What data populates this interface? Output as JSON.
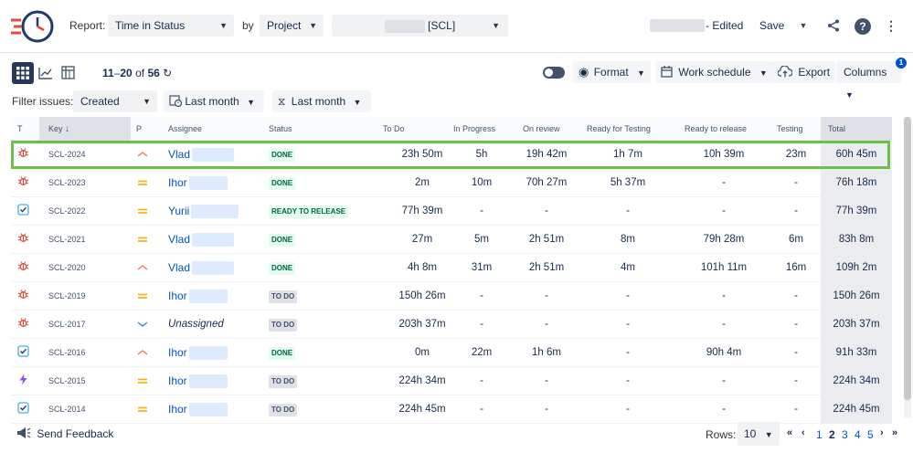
{
  "header": {
    "report_label": "Report:",
    "report_value": "Time in Status",
    "by_label": "by",
    "group_value": "Project",
    "project_value": "[SCL]",
    "edited_label": "- Edited",
    "save_label": "Save"
  },
  "toolbar": {
    "range_start": "11",
    "range_end": "20",
    "of_label": "of",
    "total_count": "56",
    "format_label": "Format",
    "work_schedule_label": "Work schedule",
    "export_label": "Export",
    "columns_label": "Columns",
    "columns_badge": "1"
  },
  "filters": {
    "label": "Filter issues:",
    "field_value": "Created",
    "from_value": "Last month",
    "to_value": "Last month"
  },
  "table": {
    "headers": {
      "type": "T",
      "key": "Key",
      "priority": "P",
      "assignee": "Assignee",
      "status": "Status",
      "todo": "To Do",
      "inprogress": "In Progress",
      "onreview": "On review",
      "readyfortesting": "Ready for Testing",
      "readytorelease": "Ready to release",
      "testing": "Testing",
      "total": "Total"
    },
    "rows": [
      {
        "type": "bug",
        "key": "SCL-2024",
        "priority": "high",
        "assignee": "Vlad",
        "status": "DONE",
        "todo": "23h 50m",
        "inprogress": "5h",
        "onreview": "19h 42m",
        "readyfortesting": "1h 7m",
        "readytorelease": "10h 39m",
        "testing": "23m",
        "total": "60h 45m"
      },
      {
        "type": "bug",
        "key": "SCL-2023",
        "priority": "medium",
        "assignee": "Ihor",
        "status": "DONE",
        "todo": "2m",
        "inprogress": "10m",
        "onreview": "70h 27m",
        "readyfortesting": "5h 37m",
        "readytorelease": "-",
        "testing": "-",
        "total": "76h 18m"
      },
      {
        "type": "task",
        "key": "SCL-2022",
        "priority": "medium",
        "assignee": "Yurii",
        "status": "READY TO RELEASE",
        "todo": "77h 39m",
        "inprogress": "-",
        "onreview": "-",
        "readyfortesting": "-",
        "readytorelease": "-",
        "testing": "-",
        "total": "77h 39m"
      },
      {
        "type": "bug",
        "key": "SCL-2021",
        "priority": "medium",
        "assignee": "Vlad",
        "status": "DONE",
        "todo": "27m",
        "inprogress": "5m",
        "onreview": "2h 51m",
        "readyfortesting": "8m",
        "readytorelease": "79h 28m",
        "testing": "6m",
        "total": "83h 8m"
      },
      {
        "type": "bug",
        "key": "SCL-2020",
        "priority": "high",
        "assignee": "Vlad",
        "status": "DONE",
        "todo": "4h 8m",
        "inprogress": "31m",
        "onreview": "2h 51m",
        "readyfortesting": "4m",
        "readytorelease": "101h 11m",
        "testing": "16m",
        "total": "109h 2m"
      },
      {
        "type": "bug",
        "key": "SCL-2019",
        "priority": "medium",
        "assignee": "Ihor",
        "status": "TO DO",
        "todo": "150h 26m",
        "inprogress": "-",
        "onreview": "-",
        "readyfortesting": "-",
        "readytorelease": "-",
        "testing": "-",
        "total": "150h 26m"
      },
      {
        "type": "bug",
        "key": "SCL-2017",
        "priority": "low",
        "assignee": "Unassigned",
        "status": "TO DO",
        "todo": "203h 37m",
        "inprogress": "-",
        "onreview": "-",
        "readyfortesting": "-",
        "readytorelease": "-",
        "testing": "-",
        "total": "203h 37m"
      },
      {
        "type": "task",
        "key": "SCL-2016",
        "priority": "high",
        "assignee": "Ihor",
        "status": "DONE",
        "todo": "0m",
        "inprogress": "22m",
        "onreview": "1h 6m",
        "readyfortesting": "-",
        "readytorelease": "90h 4m",
        "testing": "-",
        "total": "91h 33m"
      },
      {
        "type": "epic",
        "key": "SCL-2015",
        "priority": "medium",
        "assignee": "Ihor",
        "status": "TO DO",
        "todo": "224h 34m",
        "inprogress": "-",
        "onreview": "-",
        "readyfortesting": "-",
        "readytorelease": "-",
        "testing": "-",
        "total": "224h 34m"
      },
      {
        "type": "task",
        "key": "SCL-2014",
        "priority": "medium",
        "assignee": "Ihor",
        "status": "TO DO",
        "todo": "224h 45m",
        "inprogress": "-",
        "onreview": "-",
        "readyfortesting": "-",
        "readytorelease": "-",
        "testing": "-",
        "total": "224h 45m"
      }
    ]
  },
  "footer": {
    "feedback_label": "Send Feedback",
    "rows_label": "Rows:",
    "rows_value": "10",
    "pages": [
      "1",
      "2",
      "3",
      "4",
      "5"
    ],
    "current_page": "2"
  },
  "colors": {
    "accent": "#0052cc",
    "bug": "#e5493a",
    "task": "#4bade8",
    "epic": "#904ee2",
    "highlight": "#6cc04a"
  }
}
